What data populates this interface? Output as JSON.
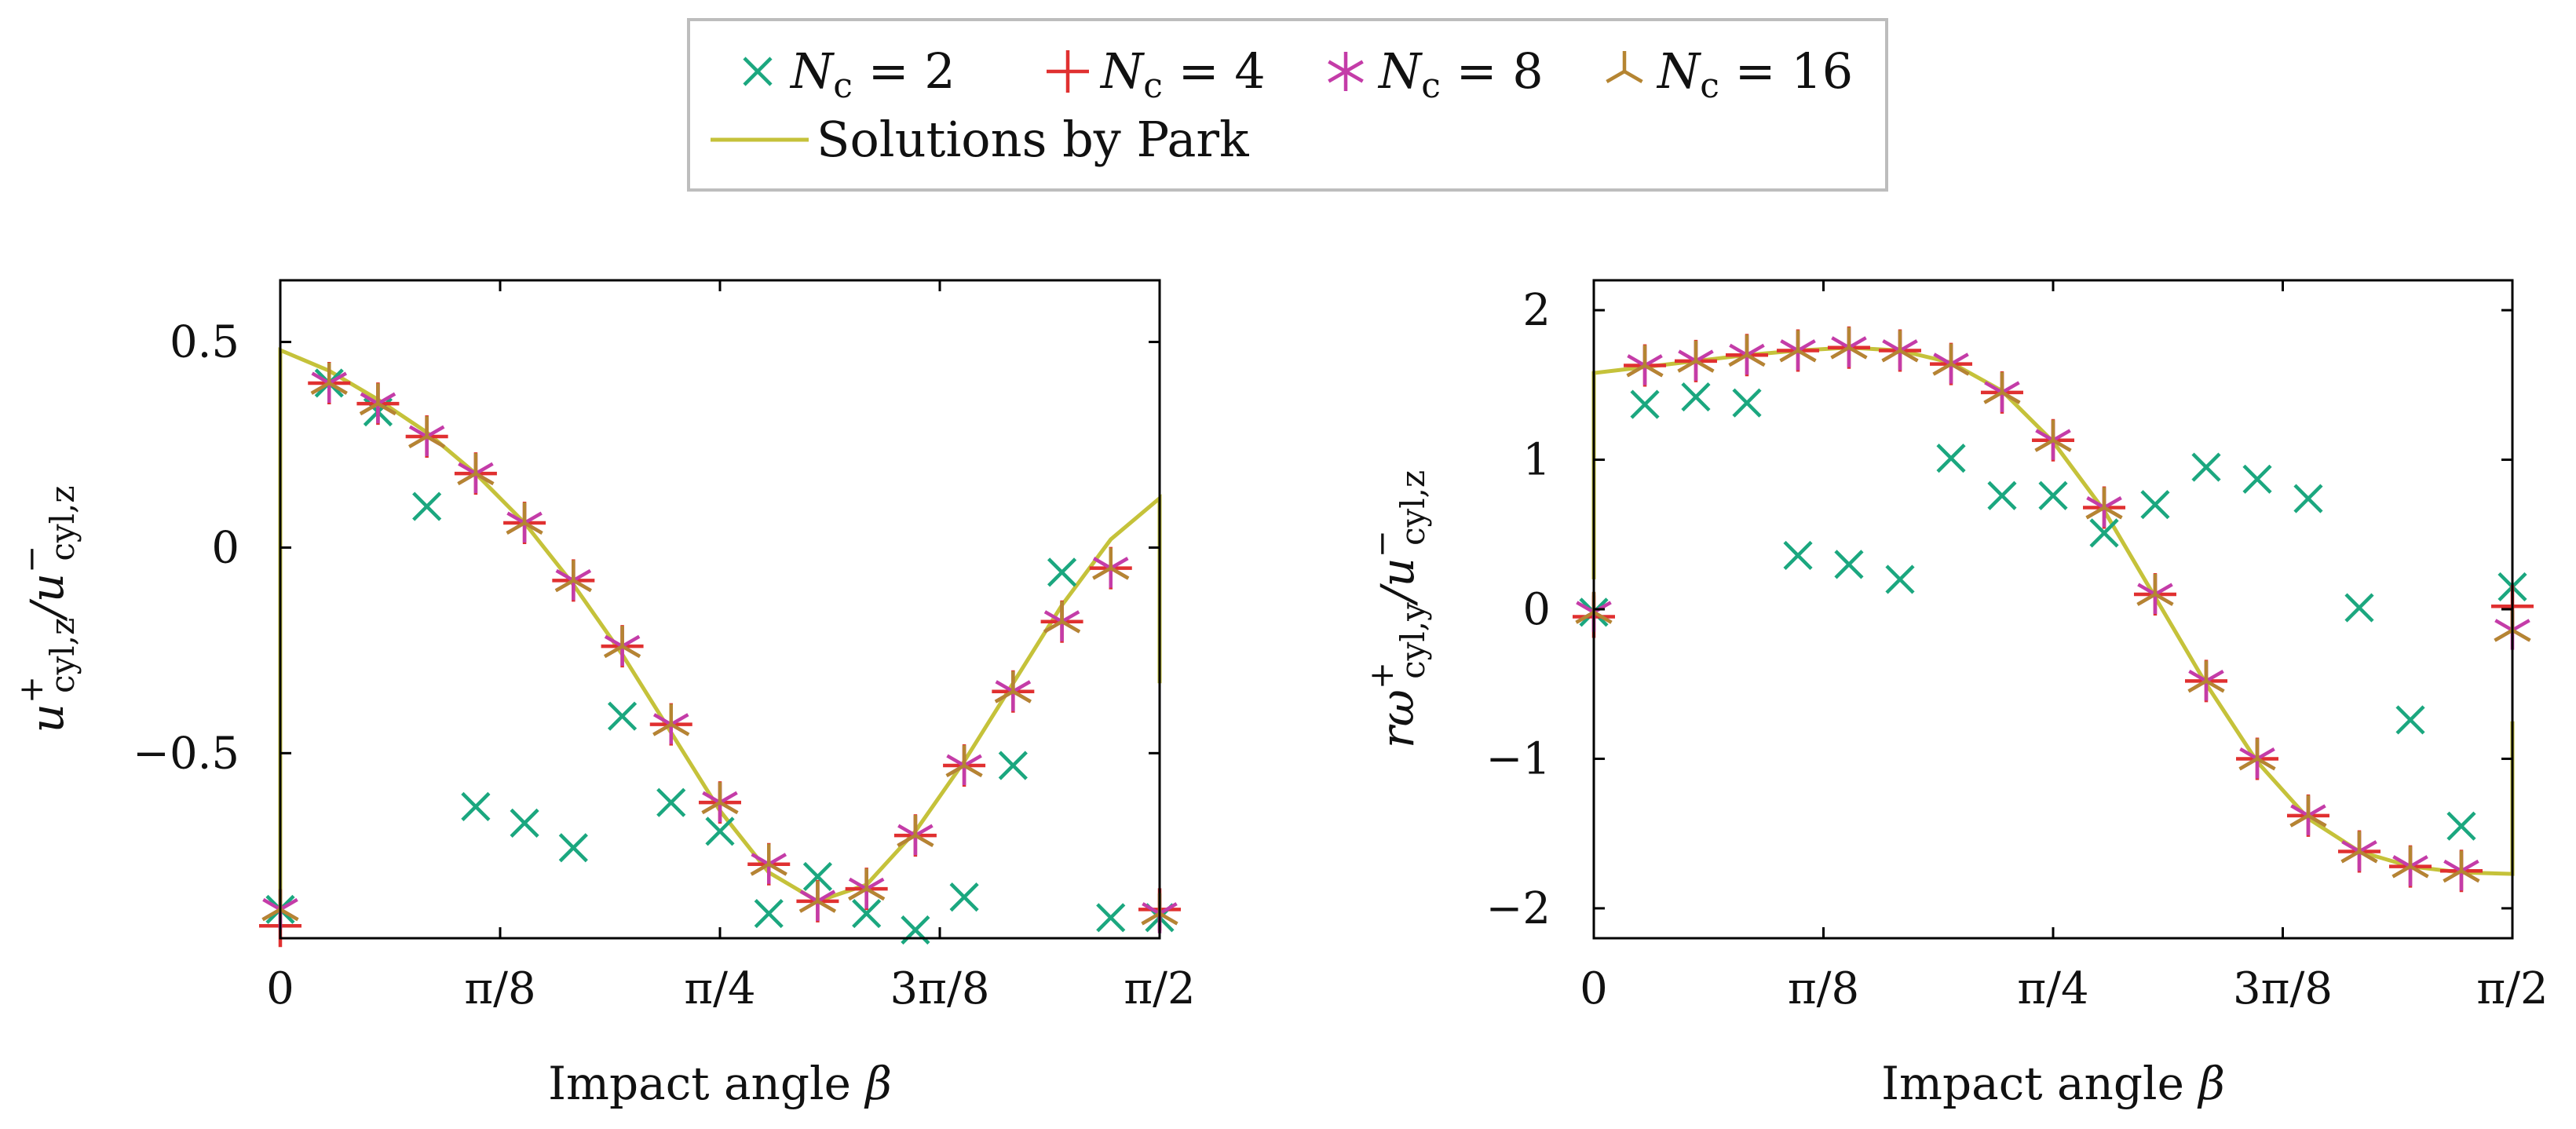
{
  "legend": {
    "entries": [
      {
        "label": "N",
        "sub": "c",
        "rest": " = 2",
        "marker": "x",
        "color": "#1ba77f"
      },
      {
        "label": "N",
        "sub": "c",
        "rest": " = 4",
        "marker": "plus",
        "color": "#e03030"
      },
      {
        "label": "N",
        "sub": "c",
        "rest": " = 8",
        "marker": "star",
        "color": "#c43ca8"
      },
      {
        "label": "N",
        "sub": "c",
        "rest": " = 16",
        "marker": "tri",
        "color": "#b58532"
      },
      {
        "label": "Solutions by Park",
        "sub": "",
        "rest": "",
        "marker": "line",
        "color": "#c5c23a"
      }
    ]
  },
  "chart_data": [
    {
      "type": "scatter",
      "title": "",
      "xlabel": "Impact angle β",
      "ylabel": "u+cyl,z / u−cyl,z",
      "ylabel_parts": {
        "main": "u",
        "sup1": "+",
        "sub1": "cyl,z",
        "sep": "/u",
        "sup2": "−",
        "sub2": "cyl,z"
      },
      "xlim": [
        0,
        1.5708
      ],
      "ylim": [
        -0.95,
        0.65
      ],
      "xticks": [
        0,
        0.3927,
        0.7854,
        1.1781,
        1.5708
      ],
      "xtick_labels": [
        "0",
        "π/8",
        "π/4",
        "3π/8",
        "π/2"
      ],
      "yticks": [
        0.5,
        0,
        -0.5
      ],
      "ytick_labels": [
        "0.5",
        "0",
        "−0.5"
      ],
      "series": [
        {
          "name": "Nc = 2",
          "marker": "x",
          "color": "#1ba77f",
          "x": [
            0,
            0.0873,
            0.1745,
            0.2618,
            0.3491,
            0.4363,
            0.5236,
            0.6109,
            0.6981,
            0.7854,
            0.8727,
            0.9599,
            1.0472,
            1.1345,
            1.2217,
            1.309,
            1.3963,
            1.4835,
            1.5708
          ],
          "y": [
            -0.88,
            0.4,
            0.33,
            0.1,
            -0.63,
            -0.67,
            -0.73,
            -0.41,
            -0.62,
            -0.69,
            -0.89,
            -0.8,
            -0.89,
            -0.93,
            -0.85,
            -0.53,
            -0.06,
            -0.9,
            -0.9
          ]
        },
        {
          "name": "Nc = 4",
          "marker": "plus",
          "color": "#e03030",
          "x": [
            0,
            0.0873,
            0.1745,
            0.2618,
            0.3491,
            0.4363,
            0.5236,
            0.6109,
            0.6981,
            0.7854,
            0.8727,
            0.9599,
            1.0472,
            1.1345,
            1.2217,
            1.309,
            1.3963,
            1.4835,
            1.5708
          ],
          "y": [
            -0.92,
            0.4,
            0.35,
            0.27,
            0.18,
            0.06,
            -0.08,
            -0.24,
            -0.43,
            -0.62,
            -0.77,
            -0.86,
            -0.83,
            -0.7,
            -0.53,
            -0.35,
            -0.18,
            -0.05,
            -0.88
          ]
        },
        {
          "name": "Nc = 8",
          "marker": "star",
          "color": "#c43ca8",
          "x": [
            0,
            0.0873,
            0.1745,
            0.2618,
            0.3491,
            0.4363,
            0.5236,
            0.6109,
            0.6981,
            0.7854,
            0.8727,
            0.9599,
            1.0472,
            1.1345,
            1.2217,
            1.309,
            1.3963,
            1.4835,
            1.5708
          ],
          "y": [
            -0.88,
            0.4,
            0.35,
            0.27,
            0.18,
            0.06,
            -0.08,
            -0.24,
            -0.43,
            -0.62,
            -0.77,
            -0.86,
            -0.83,
            -0.7,
            -0.53,
            -0.35,
            -0.18,
            -0.05,
            -0.89
          ]
        },
        {
          "name": "Nc = 16",
          "marker": "tri",
          "color": "#b58532",
          "x": [
            0,
            0.0873,
            0.1745,
            0.2618,
            0.3491,
            0.4363,
            0.5236,
            0.6109,
            0.6981,
            0.7854,
            0.8727,
            0.9599,
            1.0472,
            1.1345,
            1.2217,
            1.309,
            1.3963,
            1.4835,
            1.5708
          ],
          "y": [
            -0.88,
            0.4,
            0.35,
            0.27,
            0.18,
            0.06,
            -0.08,
            -0.24,
            -0.43,
            -0.62,
            -0.77,
            -0.86,
            -0.83,
            -0.7,
            -0.53,
            -0.35,
            -0.18,
            -0.05,
            -0.89
          ]
        },
        {
          "name": "Solutions by Park",
          "marker": "line",
          "color": "#c5c23a",
          "x": [
            0,
            0,
            0.0873,
            0.1745,
            0.2618,
            0.3491,
            0.4363,
            0.5236,
            0.6109,
            0.6981,
            0.7854,
            0.8727,
            0.9599,
            1.0472,
            1.1345,
            1.2217,
            1.309,
            1.3963,
            1.4835,
            1.5708,
            1.5708
          ],
          "y": [
            -0.88,
            0.48,
            0.43,
            0.36,
            0.28,
            0.18,
            0.06,
            -0.09,
            -0.26,
            -0.45,
            -0.64,
            -0.79,
            -0.86,
            -0.82,
            -0.69,
            -0.52,
            -0.33,
            -0.14,
            0.02,
            0.12,
            -0.33
          ]
        }
      ]
    },
    {
      "type": "scatter",
      "title": "",
      "xlabel": "Impact angle β",
      "ylabel": "rω+cyl,y / u−cyl,z",
      "ylabel_parts": {
        "main": "rω",
        "sup1": "+",
        "sub1": "cyl,y",
        "sep": "/u",
        "sup2": "−",
        "sub2": "cyl,z"
      },
      "xlim": [
        0,
        1.5708
      ],
      "ylim": [
        -2.2,
        2.2
      ],
      "xticks": [
        0,
        0.3927,
        0.7854,
        1.1781,
        1.5708
      ],
      "xtick_labels": [
        "0",
        "π/8",
        "π/4",
        "3π/8",
        "π/2"
      ],
      "yticks": [
        2,
        1,
        0,
        -1,
        -2
      ],
      "ytick_labels": [
        "2",
        "1",
        "0",
        "−1",
        "−2"
      ],
      "series": [
        {
          "name": "Nc = 2",
          "marker": "x",
          "color": "#1ba77f",
          "x": [
            0,
            0.0873,
            0.1745,
            0.2618,
            0.3491,
            0.4363,
            0.5236,
            0.6109,
            0.6981,
            0.7854,
            0.8727,
            0.9599,
            1.0472,
            1.1345,
            1.2217,
            1.309,
            1.3963,
            1.4835,
            1.5708
          ],
          "y": [
            -0.02,
            1.37,
            1.42,
            1.38,
            0.36,
            0.3,
            0.2,
            1.01,
            0.76,
            0.76,
            0.51,
            0.7,
            0.95,
            0.87,
            0.74,
            0.01,
            -0.74,
            -1.45,
            0.15
          ]
        },
        {
          "name": "Nc = 4",
          "marker": "plus",
          "color": "#e03030",
          "x": [
            0,
            0.0873,
            0.1745,
            0.2618,
            0.3491,
            0.4363,
            0.5236,
            0.6109,
            0.6981,
            0.7854,
            0.8727,
            0.9599,
            1.0472,
            1.1345,
            1.2217,
            1.309,
            1.3963,
            1.4835,
            1.5708
          ],
          "y": [
            -0.05,
            1.63,
            1.66,
            1.7,
            1.73,
            1.75,
            1.73,
            1.64,
            1.45,
            1.13,
            0.68,
            0.1,
            -0.48,
            -1.0,
            -1.38,
            -1.62,
            -1.72,
            -1.75,
            0.02
          ]
        },
        {
          "name": "Nc = 8",
          "marker": "star",
          "color": "#c43ca8",
          "x": [
            0,
            0.0873,
            0.1745,
            0.2618,
            0.3491,
            0.4363,
            0.5236,
            0.6109,
            0.6981,
            0.7854,
            0.8727,
            0.9599,
            1.0472,
            1.1345,
            1.2217,
            1.309,
            1.3963,
            1.4835,
            1.5708
          ],
          "y": [
            -0.02,
            1.63,
            1.66,
            1.7,
            1.73,
            1.75,
            1.73,
            1.64,
            1.45,
            1.13,
            0.68,
            0.1,
            -0.48,
            -1.0,
            -1.38,
            -1.62,
            -1.72,
            -1.75,
            -0.14
          ]
        },
        {
          "name": "Nc = 16",
          "marker": "tri",
          "color": "#b58532",
          "x": [
            0,
            0.0873,
            0.1745,
            0.2618,
            0.3491,
            0.4363,
            0.5236,
            0.6109,
            0.6981,
            0.7854,
            0.8727,
            0.9599,
            1.0472,
            1.1345,
            1.2217,
            1.309,
            1.3963,
            1.4835,
            1.5708
          ],
          "y": [
            -0.02,
            1.63,
            1.66,
            1.7,
            1.73,
            1.75,
            1.73,
            1.64,
            1.45,
            1.13,
            0.68,
            0.1,
            -0.48,
            -1.0,
            -1.38,
            -1.62,
            -1.72,
            -1.75,
            -0.14
          ]
        },
        {
          "name": "Solutions by Park",
          "marker": "line",
          "color": "#c5c23a",
          "x": [
            0,
            0,
            0.0873,
            0.1745,
            0.2618,
            0.3491,
            0.4363,
            0.5236,
            0.6109,
            0.6981,
            0.7854,
            0.8727,
            0.9599,
            1.0472,
            1.1345,
            1.2217,
            1.309,
            1.3963,
            1.4835,
            1.5708,
            1.5708
          ],
          "y": [
            0.2,
            1.58,
            1.62,
            1.66,
            1.7,
            1.73,
            1.75,
            1.73,
            1.65,
            1.46,
            1.12,
            0.66,
            0.08,
            -0.5,
            -1.02,
            -1.4,
            -1.62,
            -1.72,
            -1.76,
            -1.77,
            -0.75
          ]
        }
      ]
    }
  ]
}
